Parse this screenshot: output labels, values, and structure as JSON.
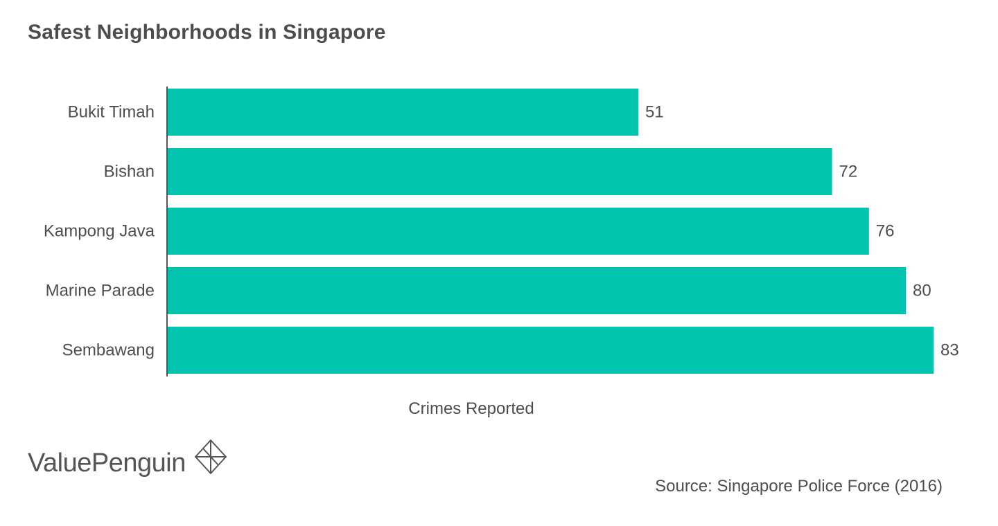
{
  "title": "Safest Neighborhoods in Singapore",
  "source": "Source: Singapore Police Force (2016)",
  "logo_text": "ValuePenguin",
  "logo_icon": "valuepenguin-diamond-icon",
  "colors": {
    "bar": "#00c4ae",
    "text": "#4d4d4d",
    "axis": "#555555"
  },
  "chart_data": {
    "type": "bar",
    "orientation": "horizontal",
    "categories": [
      "Bukit Timah",
      "Bishan",
      "Kampong Java",
      "Marine Parade",
      "Sembawang"
    ],
    "values": [
      51,
      72,
      76,
      80,
      83
    ],
    "title": "Safest Neighborhoods in Singapore",
    "xlabel": "Crimes Reported",
    "ylabel": "",
    "xlim": [
      0,
      83
    ],
    "grid": false,
    "legend": "none",
    "data_labels": true
  }
}
